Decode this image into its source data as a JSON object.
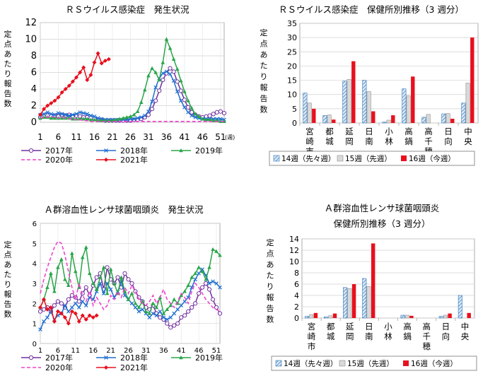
{
  "chart_data": [
    {
      "type": "line",
      "title": "ＲＳウイルス感染症　発生状況",
      "ylabel": "定点あたり報告数",
      "xunit": "(週)",
      "ylim": [
        0,
        12
      ],
      "yticks": [
        0,
        2,
        4,
        6,
        8,
        10,
        12
      ],
      "xticks": [
        1,
        6,
        11,
        16,
        21,
        26,
        31,
        36,
        41,
        46,
        51
      ],
      "grid": true,
      "legend_position": "bottom",
      "series": [
        {
          "name": "2017年",
          "color": "#7030a0",
          "marker": "circle-open",
          "values": [
            0.6,
            0.7,
            0.8,
            0.7,
            0.8,
            0.7,
            0.9,
            0.8,
            0.9,
            0.7,
            0.8,
            0.7,
            0.6,
            0.6,
            0.5,
            0.4,
            0.3,
            0.3,
            0.2,
            0.2,
            0.2,
            0.2,
            0.2,
            0.2,
            0.2,
            0.2,
            0.3,
            0.3,
            0.4,
            0.6,
            0.9,
            1.6,
            2.6,
            3.8,
            5.1,
            5.9,
            6.5,
            6.1,
            4.9,
            3.8,
            2.7,
            1.8,
            1.2,
            0.9,
            0.7,
            0.6,
            0.7,
            0.8,
            1.0,
            1.2,
            1.3,
            1.1
          ]
        },
        {
          "name": "2018年",
          "color": "#1f6fd0",
          "marker": "x",
          "values": [
            0.9,
            1.0,
            1.2,
            1.0,
            0.9,
            1.1,
            1.0,
            0.9,
            0.8,
            0.9,
            1.0,
            1.2,
            1.1,
            1.0,
            0.8,
            0.7,
            0.5,
            0.4,
            0.3,
            0.3,
            0.3,
            0.3,
            0.3,
            0.3,
            0.3,
            0.4,
            0.4,
            0.5,
            0.6,
            0.8,
            1.3,
            2.5,
            4.2,
            5.3,
            5.9,
            6.1,
            5.8,
            5.0,
            3.7,
            2.6,
            1.8,
            1.2,
            0.8,
            0.6,
            0.5,
            0.4,
            0.4,
            0.4,
            0.4,
            0.4,
            0.4,
            0.3
          ]
        },
        {
          "name": "2019年",
          "color": "#2aa54a",
          "marker": "triangle",
          "values": [
            0.5,
            0.6,
            0.6,
            0.5,
            0.5,
            0.5,
            0.5,
            0.5,
            0.5,
            0.4,
            0.4,
            0.4,
            0.4,
            0.4,
            0.3,
            0.3,
            0.2,
            0.2,
            0.2,
            0.2,
            0.2,
            0.3,
            0.4,
            0.5,
            0.6,
            0.7,
            0.9,
            1.3,
            2.4,
            3.9,
            5.6,
            6.5,
            6.0,
            5.1,
            7.2,
            10.0,
            8.9,
            7.6,
            6.4,
            5.0,
            3.7,
            2.6,
            1.7,
            1.0,
            0.7,
            0.4,
            0.3,
            0.3,
            0.2,
            0.2,
            0.1,
            0.1
          ]
        },
        {
          "name": "2020年",
          "color": "#ee44cc",
          "marker": "none",
          "dashed": true,
          "values": [
            0.5,
            0.6,
            0.6,
            0.7,
            0.6,
            0.5,
            0.6,
            0.5,
            0.4,
            0.4,
            0.3,
            0.3,
            0.2,
            0.2,
            0.1,
            0.1,
            0.1,
            0.1,
            0.1,
            0.1,
            0.1,
            0.1,
            0.1,
            0.1,
            0.1,
            0.1,
            0.1,
            0.1,
            0.1,
            0.1,
            0.1,
            0.1,
            0.1,
            0.1,
            0.1,
            0.1,
            0.1,
            0.1,
            0.1,
            0.1,
            0.1,
            0.1,
            0.1,
            0.1,
            0.1,
            0.1,
            0.1,
            0.1,
            0.1,
            0.1,
            0.1,
            0.1
          ]
        },
        {
          "name": "2021年",
          "color": "#e8101e",
          "marker": "diamond",
          "values": [
            0.9,
            1.6,
            2.0,
            2.3,
            2.6,
            3.0,
            3.6,
            4.0,
            4.4,
            4.9,
            5.4,
            6.0,
            6.6,
            5.1,
            5.7,
            7.2,
            8.3,
            7.1,
            7.4,
            7.6
          ]
        }
      ]
    },
    {
      "type": "bar",
      "title": "ＲＳウイルス感染症　保健所別推移（3 週分）",
      "ylabel": "定点あたり報告数",
      "ylim": [
        0,
        35
      ],
      "yticks": [
        0,
        5,
        10,
        15,
        20,
        25,
        30,
        35
      ],
      "grid": true,
      "legend_position": "bottom",
      "categories": [
        "宮崎市",
        "都城",
        "延岡",
        "日南",
        "小林",
        "高鍋",
        "高千穂",
        "日向",
        "中央"
      ],
      "series": [
        {
          "name": "14週（先々週）",
          "color": "#9dc3e6",
          "pattern": "hatch",
          "values": [
            10.5,
            2.6,
            14.7,
            15.0,
            0.3,
            12.0,
            2.0,
            3.2,
            7.0
          ]
        },
        {
          "name": "15週（先週）",
          "color": "#d9d9d9",
          "values": [
            7.0,
            2.8,
            15.3,
            11.0,
            1.0,
            9.5,
            3.0,
            3.3,
            14.0
          ]
        },
        {
          "name": "16週（今週）",
          "color": "#e8101e",
          "values": [
            5.0,
            1.2,
            21.7,
            4.1,
            2.7,
            16.3,
            0.0,
            1.5,
            30.0
          ]
        }
      ]
    },
    {
      "type": "line",
      "title": "Ａ群溶血性レンサ球菌咽頭炎　発生状況",
      "ylabel": "定点あたり報告数",
      "ylim": [
        0,
        6
      ],
      "yticks": [
        0,
        1,
        2,
        3,
        4,
        5,
        6
      ],
      "xticks": [
        1,
        6,
        11,
        16,
        21,
        26,
        31,
        36,
        41,
        46,
        51
      ],
      "grid": true,
      "legend_position": "bottom",
      "series": [
        {
          "name": "2017年",
          "color": "#7030a0",
          "marker": "circle-open",
          "values": [
            1.6,
            1.7,
            1.8,
            1.6,
            1.9,
            2.1,
            2.0,
            1.8,
            2.2,
            2.4,
            2.3,
            2.1,
            2.5,
            2.8,
            2.4,
            2.9,
            3.3,
            3.5,
            2.7,
            3.8,
            3.2,
            3.0,
            3.3,
            2.8,
            3.5,
            3.2,
            3.0,
            2.6,
            2.3,
            2.1,
            1.8,
            1.7,
            1.9,
            1.5,
            1.3,
            1.2,
            1.0,
            0.8,
            0.9,
            1.0,
            1.3,
            1.4,
            1.6,
            1.8,
            2.0,
            2.5,
            2.8,
            3.0,
            2.7,
            2.2,
            1.8,
            1.5
          ]
        },
        {
          "name": "2018年",
          "color": "#1f6fd0",
          "marker": "x",
          "values": [
            0.7,
            1.1,
            1.3,
            1.6,
            1.2,
            1.4,
            1.5,
            1.9,
            1.6,
            1.8,
            2.0,
            1.8,
            2.1,
            1.9,
            2.3,
            2.2,
            2.6,
            3.0,
            2.5,
            3.0,
            2.7,
            2.3,
            2.6,
            3.1,
            2.4,
            2.2,
            2.0,
            1.8,
            1.6,
            1.7,
            1.5,
            1.3,
            1.5,
            1.4,
            1.6,
            1.3,
            1.2,
            1.3,
            1.5,
            1.7,
            1.9,
            2.1,
            2.3,
            2.8,
            3.2,
            3.5,
            3.7,
            3.4,
            3.0,
            3.1,
            3.0,
            2.8
          ]
        },
        {
          "name": "2019年",
          "color": "#2aa54a",
          "marker": "triangle",
          "values": [
            1.8,
            2.2,
            2.8,
            3.5,
            2.6,
            3.8,
            4.2,
            3.2,
            2.9,
            4.5,
            3.6,
            2.8,
            4.3,
            4.8,
            3.5,
            3.0,
            2.7,
            3.3,
            3.8,
            2.5,
            3.7,
            3.0,
            2.5,
            3.3,
            2.6,
            2.2,
            2.5,
            2.0,
            1.8,
            2.1,
            1.6,
            1.5,
            2.0,
            1.8,
            2.3,
            1.5,
            1.7,
            1.9,
            2.2,
            2.0,
            2.4,
            2.6,
            2.9,
            3.3,
            3.5,
            3.8,
            3.6,
            3.2,
            3.8,
            4.7,
            4.6,
            4.4
          ]
        },
        {
          "name": "2020年",
          "color": "#ee44cc",
          "marker": "none",
          "dashed": true,
          "values": [
            2.5,
            3.2,
            3.8,
            4.3,
            4.8,
            5.1,
            5.0,
            4.4,
            3.6,
            2.8,
            2.2,
            3.0,
            2.4,
            2.1,
            2.6,
            1.9,
            2.3,
            2.0,
            1.7,
            1.9,
            2.4,
            2.2,
            2.6,
            2.3,
            2.8,
            2.5,
            2.9,
            2.6,
            2.2,
            2.0,
            1.9,
            2.1,
            2.4,
            2.0,
            2.3,
            2.7,
            2.2,
            2.0,
            1.8,
            2.1,
            2.5,
            2.3,
            2.0,
            2.6,
            3.0,
            2.8,
            2.5,
            2.2,
            2.0,
            1.8,
            1.7,
            1.6
          ]
        },
        {
          "name": "2021年",
          "color": "#e8101e",
          "marker": "diamond",
          "values": [
            1.8,
            2.2,
            1.7,
            1.8,
            1.1,
            1.6,
            1.5,
            1.3,
            1.0,
            1.6,
            1.5,
            1.1,
            1.4,
            1.2,
            1.4,
            1.3,
            1.4
          ]
        }
      ]
    },
    {
      "type": "bar",
      "title": "Ａ群溶血性レンサ球菌咽頭炎",
      "subtitle": "保健所別推移（3 週分）",
      "ylabel": "定点あたり報告数",
      "ylim": [
        0,
        14
      ],
      "yticks": [
        0,
        2,
        4,
        6,
        8,
        10,
        12,
        14
      ],
      "grid": true,
      "legend_position": "bottom",
      "categories": [
        "宮崎市",
        "都城",
        "延岡",
        "日南",
        "小林",
        "高鍋",
        "高千穂",
        "日向",
        "中央"
      ],
      "series": [
        {
          "name": "14週（先々週）",
          "color": "#9dc3e6",
          "pattern": "hatch",
          "values": [
            0.3,
            0.2,
            5.4,
            7.0,
            0.0,
            0.5,
            0.0,
            0.3,
            4.0
          ]
        },
        {
          "name": "15週（先週）",
          "color": "#d9d9d9",
          "values": [
            0.6,
            0.4,
            5.2,
            5.6,
            0.0,
            0.5,
            0.0,
            0.5,
            0.0
          ]
        },
        {
          "name": "16週（今週）",
          "color": "#e8101e",
          "values": [
            0.9,
            0.8,
            6.0,
            13.2,
            0.0,
            0.4,
            0.0,
            0.8,
            0.9
          ]
        }
      ]
    }
  ]
}
